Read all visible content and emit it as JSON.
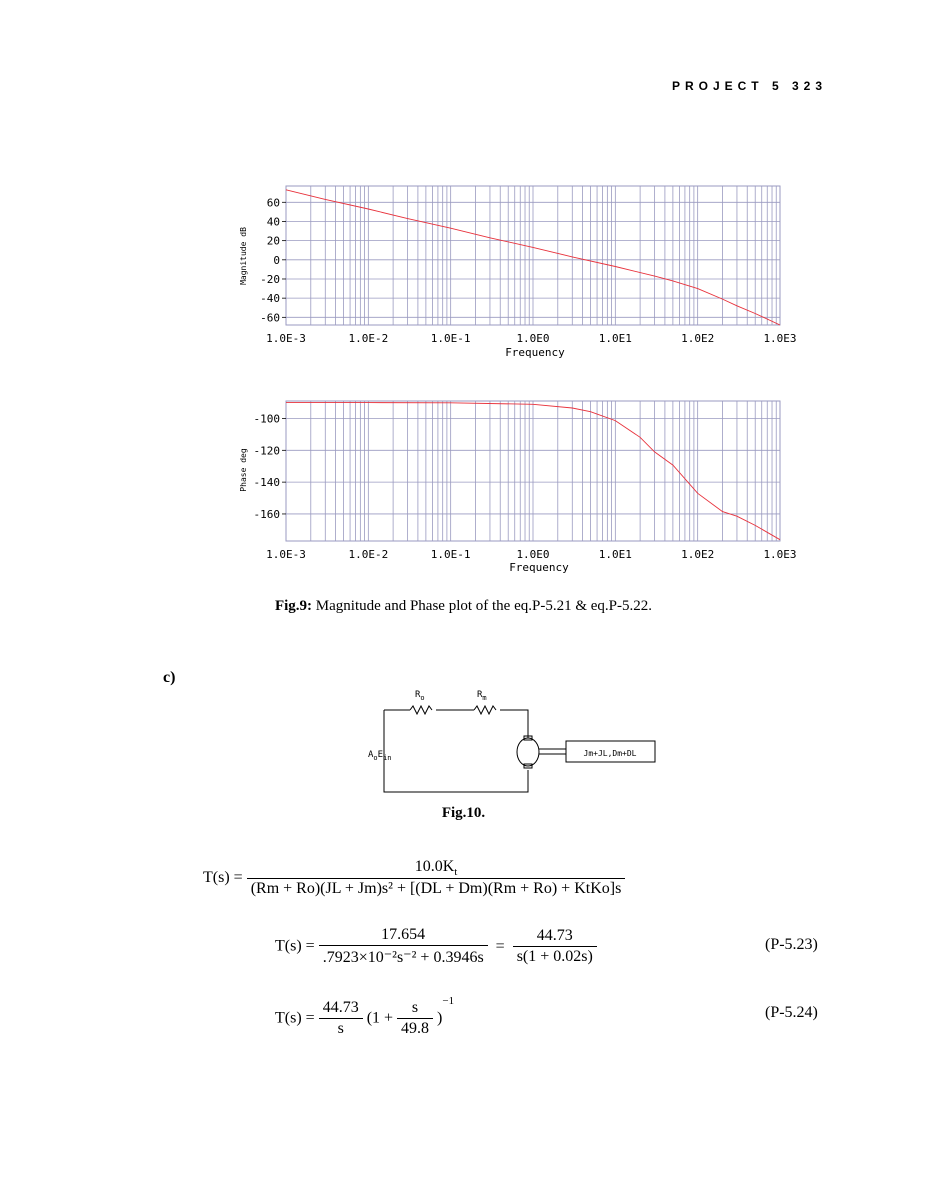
{
  "header": {
    "running_head": "PROJECT 5   323"
  },
  "chart_data": [
    {
      "type": "line",
      "subtype": "bode-magnitude",
      "xscale": "log",
      "xlabel": "Frequency",
      "ylabel": "Magnitude dB",
      "xticks": [
        "1.0E-3",
        "1.0E-2",
        "1.0E-1",
        "1.0E0",
        "1.0E1",
        "1.0E2",
        "1.0E3"
      ],
      "yticks": [
        "60",
        "40",
        "20",
        "0",
        "-20",
        "-40",
        "-60"
      ],
      "xlim": [
        0.001,
        1000
      ],
      "ylim": [
        -68,
        77
      ],
      "grid": true,
      "series": [
        {
          "color": "#e8323c",
          "x": [
            0.001,
            0.003,
            0.01,
            0.03,
            0.1,
            0.3,
            1,
            3,
            10,
            30,
            50,
            100,
            200,
            300,
            500,
            1000
          ],
          "y": [
            73,
            63,
            53,
            43,
            33,
            23,
            13,
            3,
            -7,
            -17,
            -22,
            -30,
            -41,
            -48,
            -56,
            -68
          ]
        }
      ]
    },
    {
      "type": "line",
      "subtype": "bode-phase",
      "xscale": "log",
      "xlabel": "Frequency",
      "ylabel": "Phase deg",
      "xticks": [
        "1.0E-3",
        "1.0E-2",
        "1.0E-1",
        "1.0E0",
        "1.0E1",
        "1.0E2",
        "1.0E3"
      ],
      "yticks": [
        "-100",
        "-120",
        "-140",
        "-160"
      ],
      "xlim": [
        0.001,
        1000
      ],
      "ylim": [
        -177,
        -89
      ],
      "grid": true,
      "series": [
        {
          "color": "#e8323c",
          "x": [
            0.001,
            0.01,
            0.1,
            1,
            3,
            5,
            10,
            20,
            30,
            50,
            100,
            200,
            300,
            500,
            1000
          ],
          "y": [
            -90,
            -90,
            -90.1,
            -91.1,
            -93.4,
            -95.7,
            -101.3,
            -111.8,
            -121,
            -129.3,
            -147,
            -158.5,
            -161.4,
            -167.2,
            -176.2
          ]
        }
      ]
    }
  ],
  "fig9_caption": {
    "label": "Fig.9:",
    "text": " Magnitude and Phase plot of the eq.P-5.21 & eq.P-5.22."
  },
  "section_label": "c)",
  "circuit": {
    "r_o_main": "R",
    "r_o_sub": "o",
    "r_m_main": "R",
    "r_m_sub": "m",
    "source_a": "A",
    "source_a_sub": "o",
    "source_e": "E",
    "source_e_sub": "in",
    "load_label": "Jm+JL,Dm+DL"
  },
  "fig10_caption": "Fig.10.",
  "equations": {
    "eq1_lhs": "T(s) =",
    "eq1_num": "10.0K",
    "eq1_num_sub": "t",
    "eq1_den": "(Rm + Ro)(JL + Jm)s² + [(DL + Dm)(Rm + Ro) + KtKo]s",
    "eq2_lhs": "T(s) =",
    "eq2_num1": "17.654",
    "eq2_den1": ".7923×10⁻²s⁻² + 0.3946s",
    "eq2_eq": "=",
    "eq2_num2": "44.73",
    "eq2_den2": "s(1 + 0.02s)",
    "eq2_tag": "(P-5.23)",
    "eq3_lhs": "T(s) =",
    "eq3_num1": "44.73",
    "eq3_den1": "s",
    "eq3_paren_open": "(1 +",
    "eq3_num2": "s",
    "eq3_den2": "49.8",
    "eq3_paren_close": ")",
    "eq3_exp": "−1",
    "eq3_tag": "(P-5.24)"
  }
}
